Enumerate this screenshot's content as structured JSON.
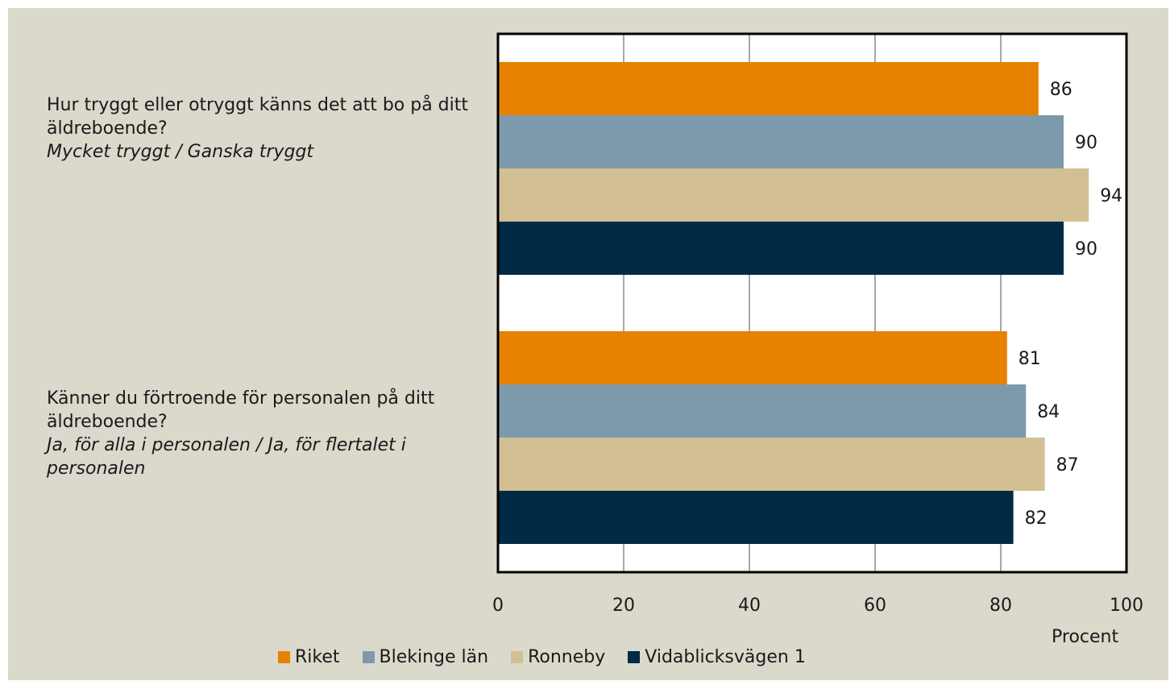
{
  "chart_data": {
    "type": "bar",
    "orientation": "horizontal",
    "categories": [
      {
        "question": "Hur tryggt eller otryggt känns det att bo på ditt äldreboende?",
        "subtitle": "Mycket tryggt / Ganska tryggt"
      },
      {
        "question": "Känner du förtroende för personalen på ditt äldreboende?",
        "subtitle": "Ja, för alla i personalen / Ja, för flertalet i personalen"
      }
    ],
    "series": [
      {
        "name": "Riket",
        "color": "#e68200",
        "values": [
          86,
          81
        ]
      },
      {
        "name": "Blekinge län",
        "color": "#7d9aac",
        "values": [
          90,
          84
        ]
      },
      {
        "name": "Ronneby",
        "color": "#d3bf94",
        "values": [
          94,
          87
        ]
      },
      {
        "name": "Vidablicksvägen 1",
        "color": "#002a45",
        "values": [
          90,
          82
        ]
      }
    ],
    "xlim": [
      0,
      100
    ],
    "xticks": [
      0,
      20,
      40,
      60,
      80,
      100
    ],
    "xlabel": "Procent",
    "data_labels": true,
    "grid": "vertical",
    "legend_position": "bottom"
  }
}
